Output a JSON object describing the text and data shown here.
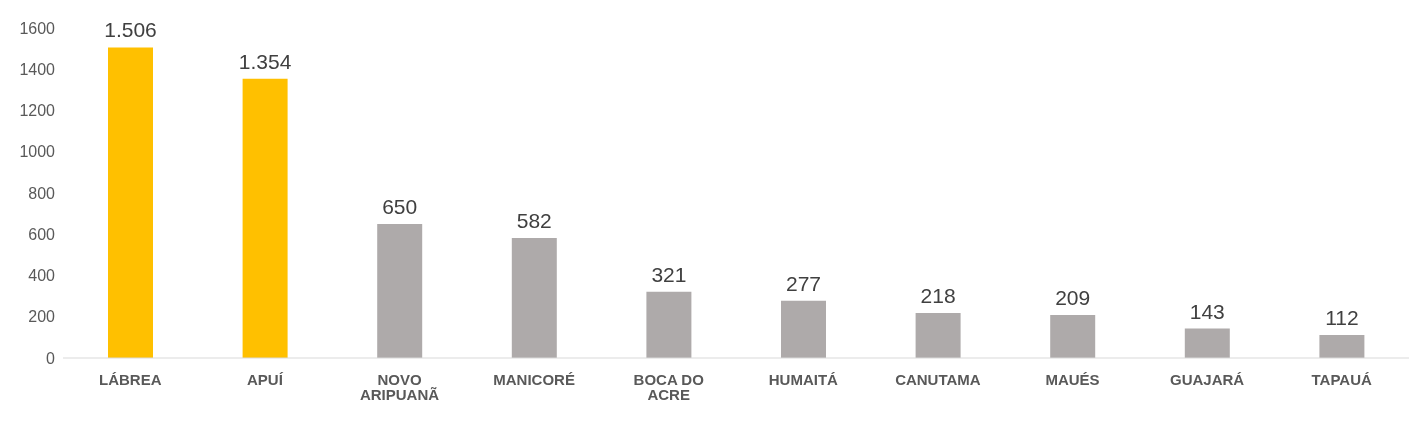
{
  "chart_data": {
    "type": "bar",
    "categories": [
      "LÁBREA",
      "APUÍ",
      "NOVO ARIPUANÃ",
      "MANICORÉ",
      "BOCA DO ACRE",
      "HUMAITÁ",
      "CANUTAMA",
      "MAUÉS",
      "GUAJARÁ",
      "TAPAUÁ"
    ],
    "values": [
      1506,
      1354,
      650,
      582,
      321,
      277,
      218,
      209,
      143,
      112
    ],
    "value_labels": [
      "1.506",
      "1.354",
      "650",
      "582",
      "321",
      "277",
      "218",
      "209",
      "143",
      "112"
    ],
    "colors": [
      "#ffc000",
      "#ffc000",
      "#aeaaaa",
      "#aeaaaa",
      "#aeaaaa",
      "#aeaaaa",
      "#aeaaaa",
      "#aeaaaa",
      "#aeaaaa",
      "#aeaaaa"
    ],
    "ylim": [
      0,
      1600
    ],
    "yticks": [
      0,
      200,
      400,
      600,
      800,
      1000,
      1200,
      1400,
      1600
    ],
    "grid": false,
    "legend": false
  }
}
